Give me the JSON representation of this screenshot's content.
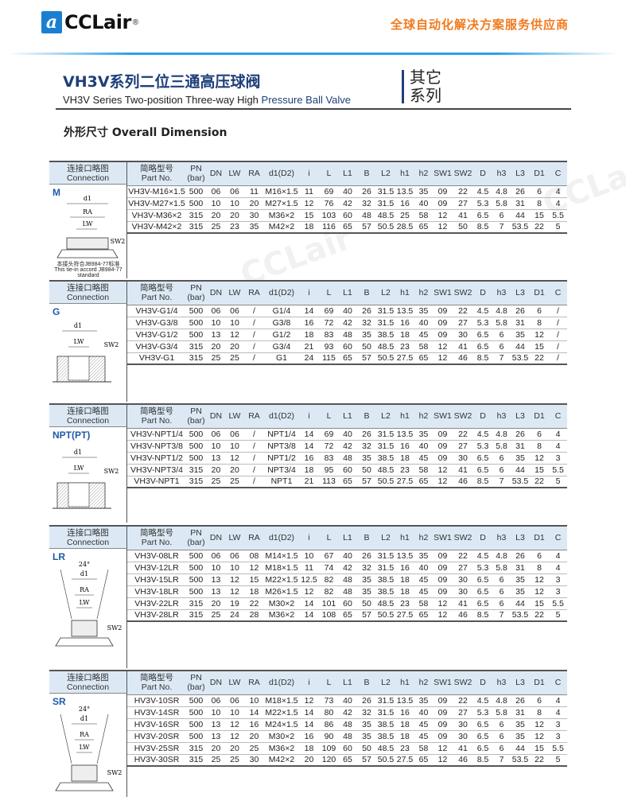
{
  "header": {
    "logo_text": "CCLair",
    "logo_reg": "®",
    "slogan": "全球自动化解决方案服务供应商"
  },
  "title": {
    "cn": "VH3V系列二位三通高压球阀",
    "en_a": "VH3V Series Two-position Three-way High ",
    "en_b": "Pressure Ball Valve",
    "side_1": "其它",
    "side_2": "系列"
  },
  "section_title": "外形尺寸 Overall Dimension",
  "conn_header": {
    "cn": "连接口略图",
    "en": "Connection"
  },
  "columns": [
    "简略型号|Part No.",
    "PN|(bar)",
    "DN",
    "LW",
    "RA",
    "d1(D2)",
    "i",
    "L",
    "L1",
    "B",
    "L2",
    "h1",
    "h2",
    "SW1",
    "SW2",
    "D",
    "h3",
    "L3",
    "D1",
    "C"
  ],
  "sections": [
    {
      "label": "M",
      "note": "本接头符合JB984-77标准|This tie-in accord JB984-77|standard",
      "rows": [
        [
          "VH3V-M16×1.5",
          "500",
          "06",
          "06",
          "11",
          "M16×1.5",
          "11",
          "69",
          "40",
          "26",
          "31.5",
          "13.5",
          "35",
          "09",
          "22",
          "4.5",
          "4.8",
          "26",
          "6",
          "4"
        ],
        [
          "VH3V-M27×1.5",
          "500",
          "10",
          "10",
          "20",
          "M27×1.5",
          "12",
          "76",
          "42",
          "32",
          "31.5",
          "16",
          "40",
          "09",
          "27",
          "5.3",
          "5.8",
          "31",
          "8",
          "4"
        ],
        [
          "VH3V-M36×2",
          "315",
          "20",
          "20",
          "30",
          "M36×2",
          "15",
          "103",
          "60",
          "48",
          "48.5",
          "25",
          "58",
          "12",
          "41",
          "6.5",
          "6",
          "44",
          "15",
          "5.5"
        ],
        [
          "VH3V-M42×2",
          "315",
          "25",
          "23",
          "35",
          "M42×2",
          "18",
          "116",
          "65",
          "57",
          "50.5",
          "28.5",
          "65",
          "12",
          "50",
          "8.5",
          "7",
          "53.5",
          "22",
          "5"
        ]
      ]
    },
    {
      "label": "G",
      "rows": [
        [
          "VH3V-G1/4",
          "500",
          "06",
          "06",
          "/",
          "G1/4",
          "14",
          "69",
          "40",
          "26",
          "31.5",
          "13.5",
          "35",
          "09",
          "22",
          "4.5",
          "4.8",
          "26",
          "6",
          "/"
        ],
        [
          "VH3V-G3/8",
          "500",
          "10",
          "10",
          "/",
          "G3/8",
          "16",
          "72",
          "42",
          "32",
          "31.5",
          "16",
          "40",
          "09",
          "27",
          "5.3",
          "5.8",
          "31",
          "8",
          "/"
        ],
        [
          "VH3V-G1/2",
          "500",
          "13",
          "12",
          "/",
          "G1/2",
          "18",
          "83",
          "48",
          "35",
          "38.5",
          "18",
          "45",
          "09",
          "30",
          "6.5",
          "6",
          "35",
          "12",
          "/"
        ],
        [
          "VH3V-G3/4",
          "315",
          "20",
          "20",
          "/",
          "G3/4",
          "21",
          "93",
          "60",
          "50",
          "48.5",
          "23",
          "58",
          "12",
          "41",
          "6.5",
          "6",
          "44",
          "15",
          "/"
        ],
        [
          "VH3V-G1",
          "315",
          "25",
          "25",
          "/",
          "G1",
          "24",
          "115",
          "65",
          "57",
          "50.5",
          "27.5",
          "65",
          "12",
          "46",
          "8.5",
          "7",
          "53.5",
          "22",
          "/"
        ]
      ]
    },
    {
      "label": "NPT(PT)",
      "rows": [
        [
          "VH3V-NPT1/4",
          "500",
          "06",
          "06",
          "/",
          "NPT1/4",
          "14",
          "69",
          "40",
          "26",
          "31.5",
          "13.5",
          "35",
          "09",
          "22",
          "4.5",
          "4.8",
          "26",
          "6",
          "4"
        ],
        [
          "VH3V-NPT3/8",
          "500",
          "10",
          "10",
          "/",
          "NPT3/8",
          "14",
          "72",
          "42",
          "32",
          "31.5",
          "16",
          "40",
          "09",
          "27",
          "5.3",
          "5.8",
          "31",
          "8",
          "4"
        ],
        [
          "VH3V-NPT1/2",
          "500",
          "13",
          "12",
          "/",
          "NPT1/2",
          "16",
          "83",
          "48",
          "35",
          "38.5",
          "18",
          "45",
          "09",
          "30",
          "6.5",
          "6",
          "35",
          "12",
          "3"
        ],
        [
          "VH3V-NPT3/4",
          "315",
          "20",
          "20",
          "/",
          "NPT3/4",
          "18",
          "95",
          "60",
          "50",
          "48.5",
          "23",
          "58",
          "12",
          "41",
          "6.5",
          "6",
          "44",
          "15",
          "5.5"
        ],
        [
          "VH3V-NPT1",
          "315",
          "25",
          "25",
          "/",
          "NPT1",
          "21",
          "113",
          "65",
          "57",
          "50.5",
          "27.5",
          "65",
          "12",
          "46",
          "8.5",
          "7",
          "53.5",
          "22",
          "5"
        ]
      ]
    },
    {
      "label": "LR",
      "rows": [
        [
          "VH3V-08LR",
          "500",
          "06",
          "06",
          "08",
          "M14×1.5",
          "10",
          "67",
          "40",
          "26",
          "31.5",
          "13.5",
          "35",
          "09",
          "22",
          "4.5",
          "4.8",
          "26",
          "6",
          "4"
        ],
        [
          "VH3V-12LR",
          "500",
          "10",
          "10",
          "12",
          "M18×1.5",
          "11",
          "74",
          "42",
          "32",
          "31.5",
          "16",
          "40",
          "09",
          "27",
          "5.3",
          "5.8",
          "31",
          "8",
          "4"
        ],
        [
          "VH3V-15LR",
          "500",
          "13",
          "12",
          "15",
          "M22×1.5",
          "12.5",
          "82",
          "48",
          "35",
          "38.5",
          "18",
          "45",
          "09",
          "30",
          "6.5",
          "6",
          "35",
          "12",
          "3"
        ],
        [
          "VH3V-18LR",
          "500",
          "13",
          "12",
          "18",
          "M26×1.5",
          "12",
          "82",
          "48",
          "35",
          "38.5",
          "18",
          "45",
          "09",
          "30",
          "6.5",
          "6",
          "35",
          "12",
          "3"
        ],
        [
          "VH3V-22LR",
          "315",
          "20",
          "19",
          "22",
          "M30×2",
          "14",
          "101",
          "60",
          "50",
          "48.5",
          "23",
          "58",
          "12",
          "41",
          "6.5",
          "6",
          "44",
          "15",
          "5.5"
        ],
        [
          "VH3V-28LR",
          "315",
          "25",
          "24",
          "28",
          "M36×2",
          "14",
          "108",
          "65",
          "57",
          "50.5",
          "27.5",
          "65",
          "12",
          "46",
          "8.5",
          "7",
          "53.5",
          "22",
          "5"
        ]
      ]
    },
    {
      "label": "SR",
      "rows": [
        [
          "HV3V-10SR",
          "500",
          "06",
          "06",
          "10",
          "M18×1.5",
          "12",
          "73",
          "40",
          "26",
          "31.5",
          "13.5",
          "35",
          "09",
          "22",
          "4.5",
          "4.8",
          "26",
          "6",
          "4"
        ],
        [
          "HV3V-14SR",
          "500",
          "10",
          "10",
          "14",
          "M22×1.5",
          "14",
          "80",
          "42",
          "32",
          "31.5",
          "16",
          "40",
          "09",
          "27",
          "5.3",
          "5.8",
          "31",
          "8",
          "4"
        ],
        [
          "HV3V-16SR",
          "500",
          "13",
          "12",
          "16",
          "M24×1.5",
          "14",
          "86",
          "48",
          "35",
          "38.5",
          "18",
          "45",
          "09",
          "30",
          "6.5",
          "6",
          "35",
          "12",
          "3"
        ],
        [
          "HV3V-20SR",
          "500",
          "13",
          "12",
          "20",
          "M30×2",
          "16",
          "90",
          "48",
          "35",
          "38.5",
          "18",
          "45",
          "09",
          "30",
          "6.5",
          "6",
          "35",
          "12",
          "3"
        ],
        [
          "HV3V-25SR",
          "315",
          "20",
          "20",
          "25",
          "M36×2",
          "18",
          "109",
          "60",
          "50",
          "48.5",
          "23",
          "58",
          "12",
          "41",
          "6.5",
          "6",
          "44",
          "15",
          "5.5"
        ],
        [
          "HV3V-30SR",
          "315",
          "25",
          "25",
          "30",
          "M42×2",
          "20",
          "120",
          "65",
          "57",
          "50.5",
          "27.5",
          "65",
          "12",
          "46",
          "8.5",
          "7",
          "53.5",
          "22",
          "5"
        ]
      ]
    }
  ],
  "diagram_labels": {
    "d1": "d1",
    "ra": "RA",
    "lw": "LW",
    "sw2": "SW2",
    "angle": "24°"
  },
  "colors": {
    "brand_blue": "#1a7fd0",
    "title_blue": "#1d3f7a",
    "slogan_orange": "#f07a1e",
    "header_bg": "#dce9f5"
  }
}
